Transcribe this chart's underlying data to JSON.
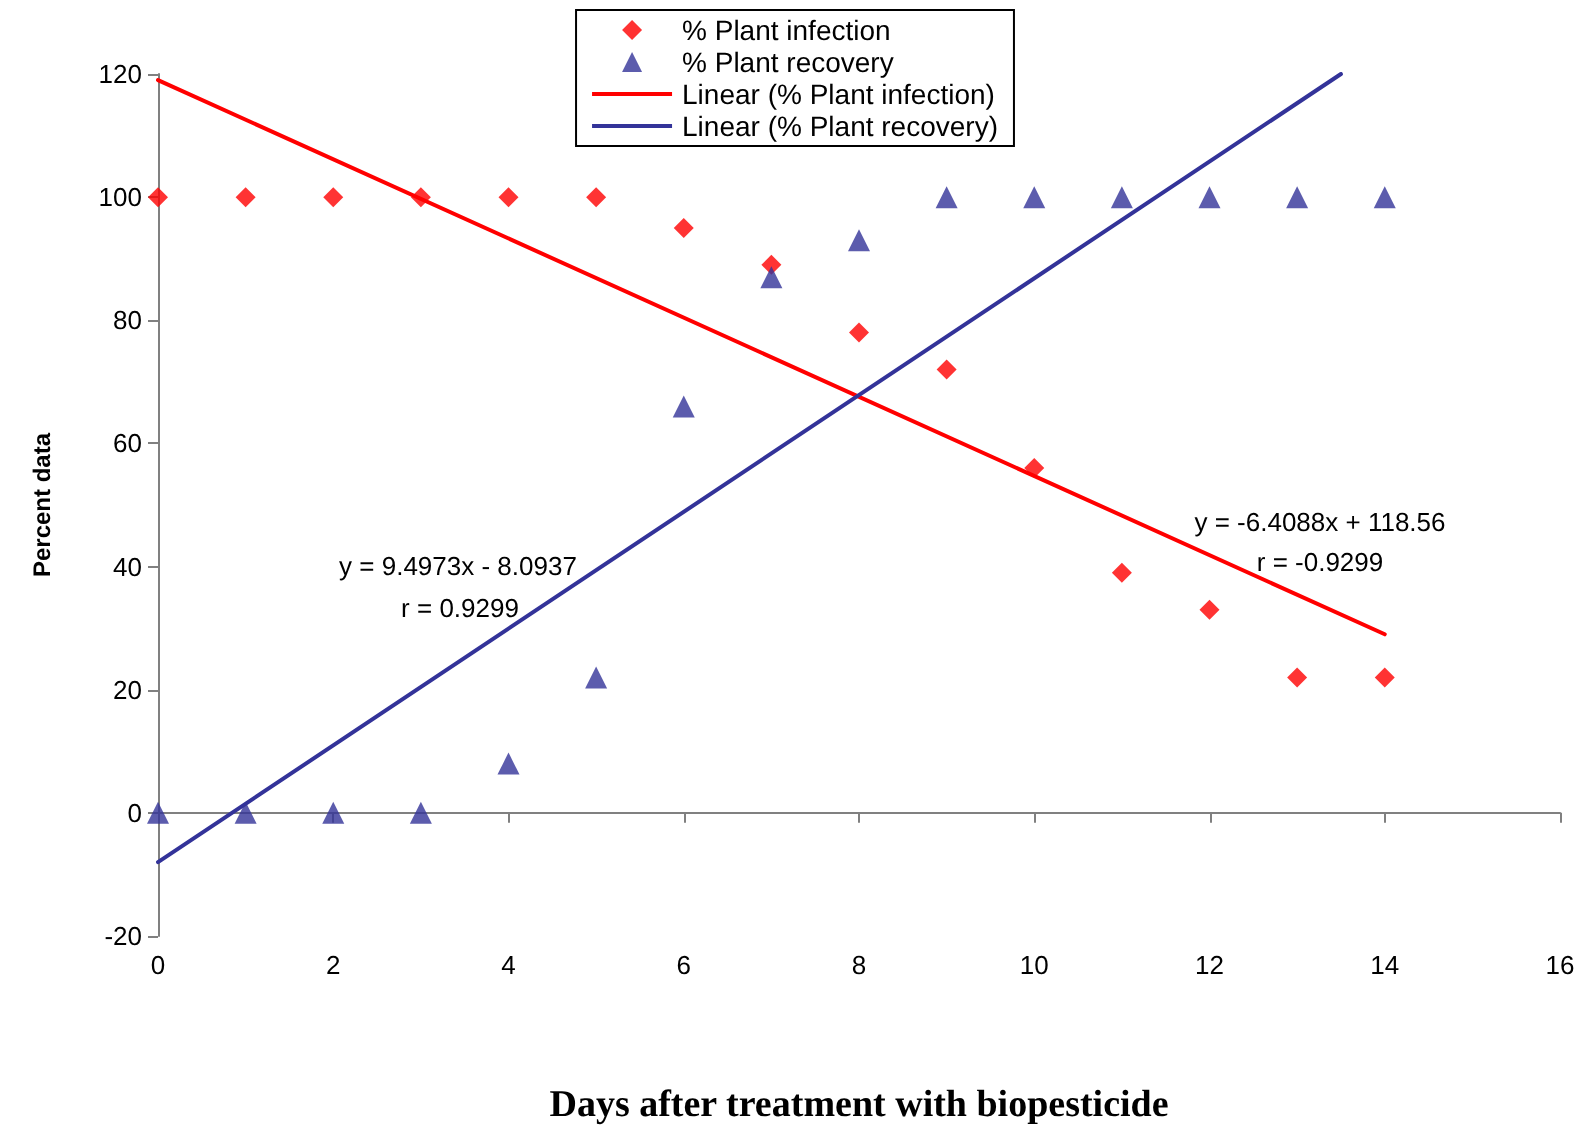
{
  "chart_data": {
    "type": "scatter",
    "xlabel": "Days after treatment with biopesticide",
    "ylabel": "Percent data",
    "x": [
      0,
      1,
      2,
      3,
      4,
      5,
      6,
      7,
      8,
      9,
      10,
      11,
      12,
      13,
      14
    ],
    "series": [
      {
        "name": "% Plant infection",
        "marker": "diamond",
        "color": "#ff0000",
        "values": [
          100,
          100,
          100,
          100,
          100,
          100,
          95,
          89,
          78,
          72,
          56,
          39,
          33,
          22,
          22
        ]
      },
      {
        "name": "% Plant recovery",
        "marker": "triangle",
        "color": "#333399",
        "values": [
          0,
          0,
          0,
          0,
          8,
          22,
          66,
          87,
          93,
          100,
          100,
          100,
          100,
          100,
          100
        ]
      },
      {
        "name": "Linear (% Plant infection)",
        "type": "line",
        "marker": "none",
        "color": "#ff0000",
        "x": [
          0,
          14
        ],
        "values": [
          119,
          29
        ]
      },
      {
        "name": "Linear (% Plant recovery)",
        "type": "line",
        "marker": "none",
        "color": "#333399",
        "x": [
          0,
          13.5
        ],
        "values": [
          -8,
          120
        ]
      }
    ],
    "annotations": [
      "y = 9.4973x - 8.0937",
      "r = 0.9299",
      "y = -6.4088x + 118.56",
      "r = -0.9299"
    ],
    "xlim": [
      0,
      16
    ],
    "xticks": [
      0,
      2,
      4,
      6,
      8,
      10,
      12,
      14,
      16
    ],
    "ylim": [
      -20,
      120
    ],
    "yticks": [
      -20,
      0,
      20,
      40,
      60,
      80,
      100,
      120
    ],
    "legend": "top"
  }
}
